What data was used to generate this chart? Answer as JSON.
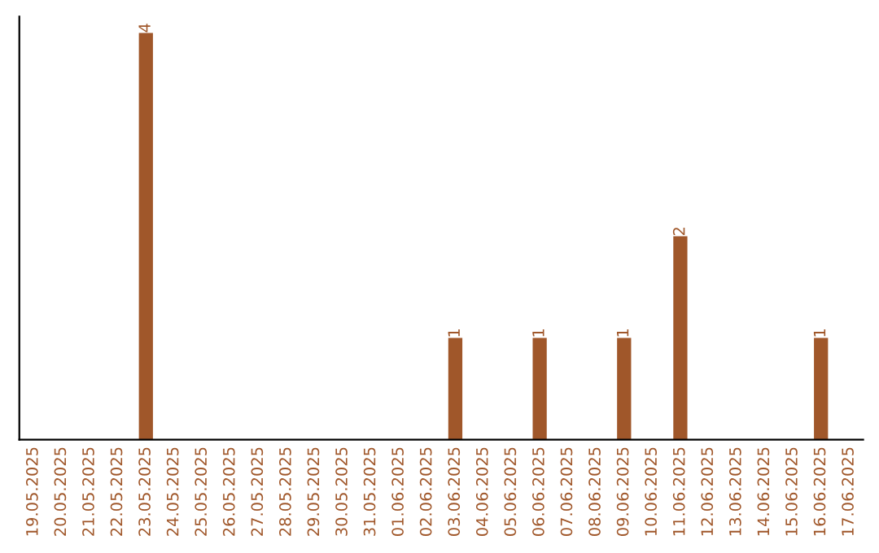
{
  "chart_data": {
    "type": "bar",
    "categories": [
      "19.05.2025",
      "20.05.2025",
      "21.05.2025",
      "22.05.2025",
      "23.05.2025",
      "24.05.2025",
      "25.05.2025",
      "26.05.2025",
      "27.05.2025",
      "28.05.2025",
      "29.05.2025",
      "30.05.2025",
      "31.05.2025",
      "01.06.2025",
      "02.06.2025",
      "03.06.2025",
      "04.06.2025",
      "05.06.2025",
      "06.06.2025",
      "07.06.2025",
      "08.06.2025",
      "09.06.2025",
      "10.06.2025",
      "11.06.2025",
      "12.06.2025",
      "13.06.2025",
      "14.06.2025",
      "15.06.2025",
      "16.06.2025",
      "17.06.2025"
    ],
    "values": [
      0,
      0,
      0,
      0,
      4,
      0,
      0,
      0,
      0,
      0,
      0,
      0,
      0,
      0,
      0,
      1,
      0,
      0,
      1,
      0,
      0,
      1,
      0,
      2,
      0,
      0,
      0,
      0,
      1,
      0
    ],
    "value_labels": [
      null,
      null,
      null,
      null,
      "4",
      null,
      null,
      null,
      null,
      null,
      null,
      null,
      null,
      null,
      null,
      "1",
      null,
      null,
      "1",
      null,
      null,
      "1",
      null,
      "2",
      null,
      null,
      null,
      null,
      "1",
      null
    ],
    "color": "#a0572a",
    "ylim": [
      0,
      4.16
    ],
    "tick_labels": "x",
    "grid": false,
    "legend": false
  }
}
